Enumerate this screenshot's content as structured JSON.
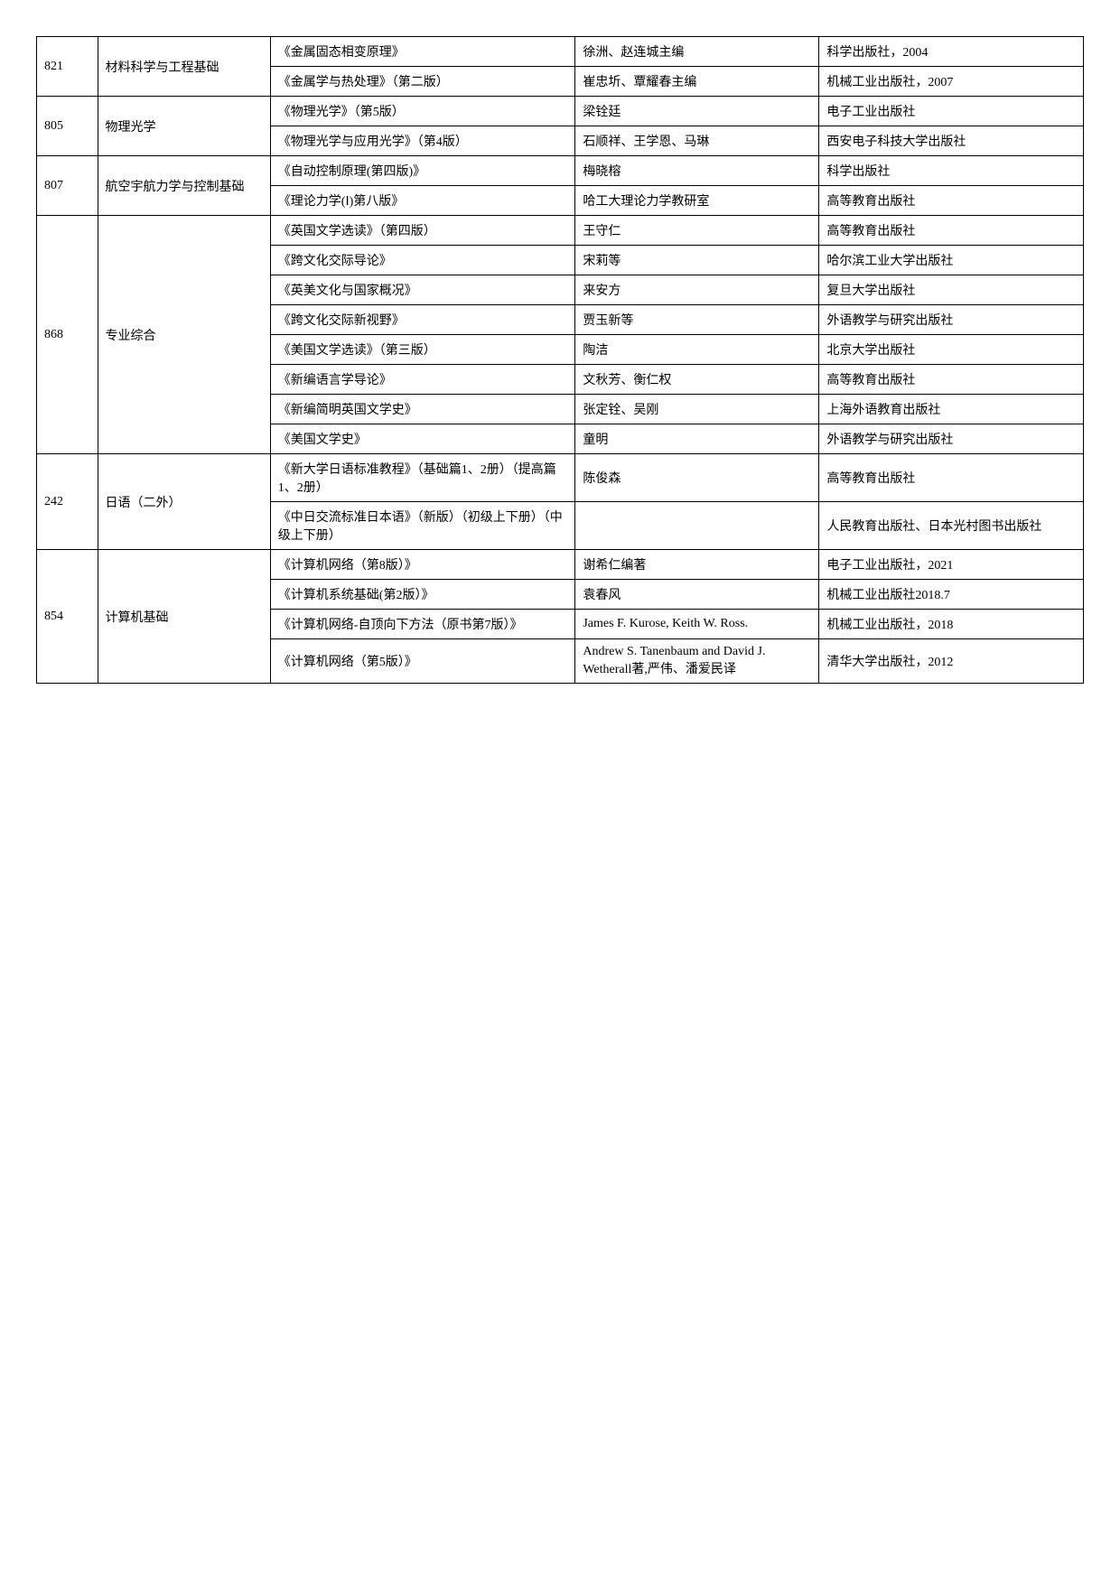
{
  "rows": [
    {
      "code": "821",
      "subject": "材料科学与工程基础",
      "books": [
        {
          "title": "《金属固态相变原理》",
          "author": "徐洲、赵连城主编",
          "publisher": "科学出版社，2004"
        },
        {
          "title": "《金属学与热处理》（第二版）",
          "author": "崔忠圻、覃耀春主编",
          "publisher": "机械工业出版社，2007"
        }
      ]
    },
    {
      "code": "805",
      "subject": "物理光学",
      "books": [
        {
          "title": "《物理光学》（第5版）",
          "author": "梁铨廷",
          "publisher": "电子工业出版社"
        },
        {
          "title": "《物理光学与应用光学》（第4版）",
          "author": "石顺祥、王学恩、马琳",
          "publisher": "西安电子科技大学出版社"
        }
      ]
    },
    {
      "code": "807",
      "subject": "航空宇航力学与控制基础",
      "books": [
        {
          "title": "《自动控制原理(第四版)》",
          "author": "梅晓榕",
          "publisher": "科学出版社"
        },
        {
          "title": "《理论力学(Ⅰ)第八版》",
          "author": "哈工大理论力学教研室",
          "publisher": "高等教育出版社"
        }
      ]
    },
    {
      "code": "868",
      "subject": "专业综合",
      "books": [
        {
          "title": "《英国文学选读》（第四版）",
          "author": "王守仁",
          "publisher": "高等教育出版社"
        },
        {
          "title": "《跨文化交际导论》",
          "author": "宋莉等",
          "publisher": "哈尔滨工业大学出版社"
        },
        {
          "title": "《英美文化与国家概况》",
          "author": "来安方",
          "publisher": "复旦大学出版社"
        },
        {
          "title": "《跨文化交际新视野》",
          "author": "贾玉新等",
          "publisher": "外语教学与研究出版社"
        },
        {
          "title": "《美国文学选读》（第三版）",
          "author": "陶洁",
          "publisher": "北京大学出版社"
        },
        {
          "title": "《新编语言学导论》",
          "author": "文秋芳、衡仁权",
          "publisher": "高等教育出版社"
        },
        {
          "title": "《新编简明英国文学史》",
          "author": "张定铨、吴刚",
          "publisher": "上海外语教育出版社"
        },
        {
          "title": "《美国文学史》",
          "author": "童明",
          "publisher": "外语教学与研究出版社"
        }
      ]
    },
    {
      "code": "242",
      "subject": "日语（二外）",
      "books": [
        {
          "title": "《新大学日语标准教程》（基础篇1、2册）（提高篇1、2册）",
          "author": "陈俊森",
          "publisher": "高等教育出版社"
        },
        {
          "title": "《中日交流标准日本语》（新版）（初级上下册）（中级上下册）",
          "author": "",
          "publisher": "人民教育出版社、日本光村图书出版社"
        }
      ]
    },
    {
      "code": "854",
      "subject": "计算机基础",
      "books": [
        {
          "title": "《计算机网络（第8版）》",
          "author": "谢希仁编著",
          "publisher": "电子工业出版社，2021"
        },
        {
          "title": "《计算机系统基础(第2版）》",
          "author": "袁春风",
          "publisher": "机械工业出版社2018.7"
        },
        {
          "title": "《计算机网络-自顶向下方法（原书第7版）》",
          "author": "James F. Kurose, Keith W. Ross.",
          "publisher": "机械工业出版社，2018"
        },
        {
          "title": "《计算机网络（第5版）》",
          "author": "Andrew S. Tanenbaum and David J. Wetherall著,严伟、潘爱民译",
          "publisher": "清华大学出版社，2012"
        }
      ]
    }
  ]
}
